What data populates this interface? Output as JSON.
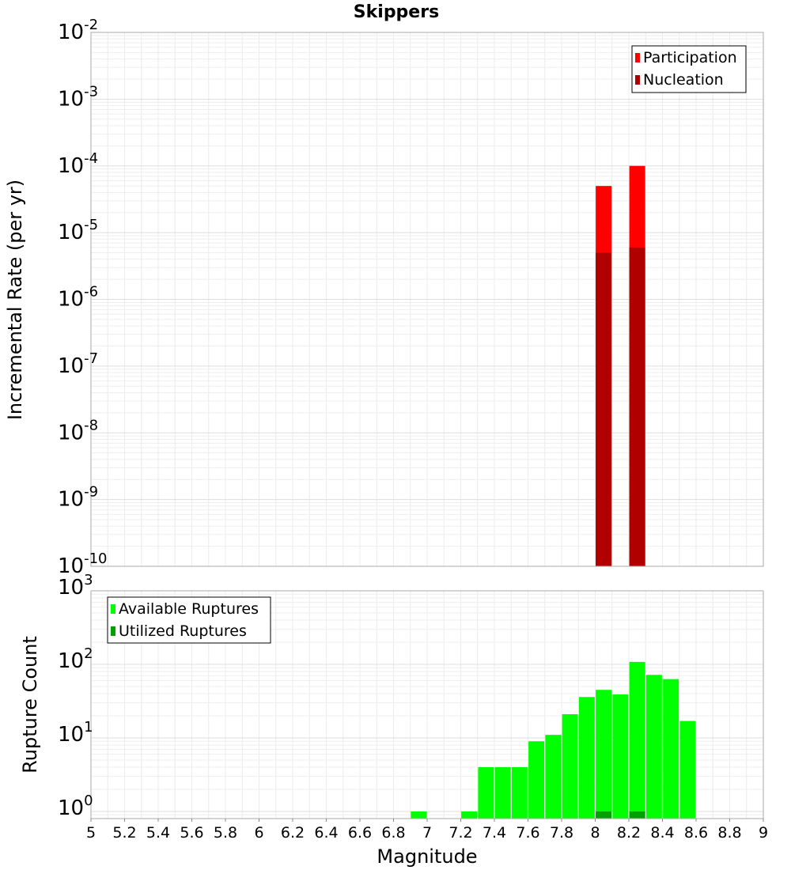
{
  "title": "Skippers",
  "chart_data": [
    {
      "type": "bar",
      "ylabel": "Incremental Rate (per yr)",
      "yscale": "log",
      "ylim": [
        1e-10,
        0.01
      ],
      "xlim": [
        5,
        9
      ],
      "grid": true,
      "legend_position": "top-right",
      "y_ticks": [
        {
          "base": "10",
          "exp": "-10"
        },
        {
          "base": "10",
          "exp": "-9"
        },
        {
          "base": "10",
          "exp": "-8"
        },
        {
          "base": "10",
          "exp": "-7"
        },
        {
          "base": "10",
          "exp": "-6"
        },
        {
          "base": "10",
          "exp": "-5"
        },
        {
          "base": "10",
          "exp": "-4"
        },
        {
          "base": "10",
          "exp": "-3"
        },
        {
          "base": "10",
          "exp": "-2"
        }
      ],
      "series": [
        {
          "name": "Participation",
          "color": "#ff0000",
          "x": [
            8.05,
            8.25
          ],
          "values": [
            5e-05,
            0.0001
          ]
        },
        {
          "name": "Nucleation",
          "color": "#b00000",
          "x": [
            8.05,
            8.25
          ],
          "values": [
            5e-06,
            6e-06
          ]
        }
      ]
    },
    {
      "type": "bar",
      "xlabel": "Magnitude",
      "ylabel": "Rupture Count",
      "yscale": "log",
      "ylim": [
        0.8,
        1000
      ],
      "xlim": [
        5,
        9
      ],
      "grid": true,
      "legend_position": "top-left",
      "x_ticks": [
        "5",
        "5.2",
        "5.4",
        "5.6",
        "5.8",
        "6",
        "6.2",
        "6.4",
        "6.6",
        "6.8",
        "7",
        "7.2",
        "7.4",
        "7.6",
        "7.8",
        "8",
        "8.2",
        "8.4",
        "8.6",
        "8.8",
        "9"
      ],
      "y_ticks": [
        {
          "base": "10",
          "exp": "0"
        },
        {
          "base": "10",
          "exp": "1"
        },
        {
          "base": "10",
          "exp": "2"
        },
        {
          "base": "10",
          "exp": "3"
        }
      ],
      "series": [
        {
          "name": "Available Ruptures",
          "color": "#00ff00",
          "x": [
            6.95,
            7.25,
            7.35,
            7.45,
            7.55,
            7.65,
            7.75,
            7.85,
            7.95,
            8.05,
            8.15,
            8.25,
            8.35,
            8.45,
            8.55
          ],
          "values": [
            1,
            1,
            4,
            4,
            4,
            9,
            11,
            21,
            36,
            45,
            39,
            108,
            72,
            63,
            17
          ]
        },
        {
          "name": "Utilized Ruptures",
          "color": "#00a000",
          "x": [
            8.05,
            8.25
          ],
          "values": [
            1,
            1
          ]
        }
      ]
    }
  ]
}
